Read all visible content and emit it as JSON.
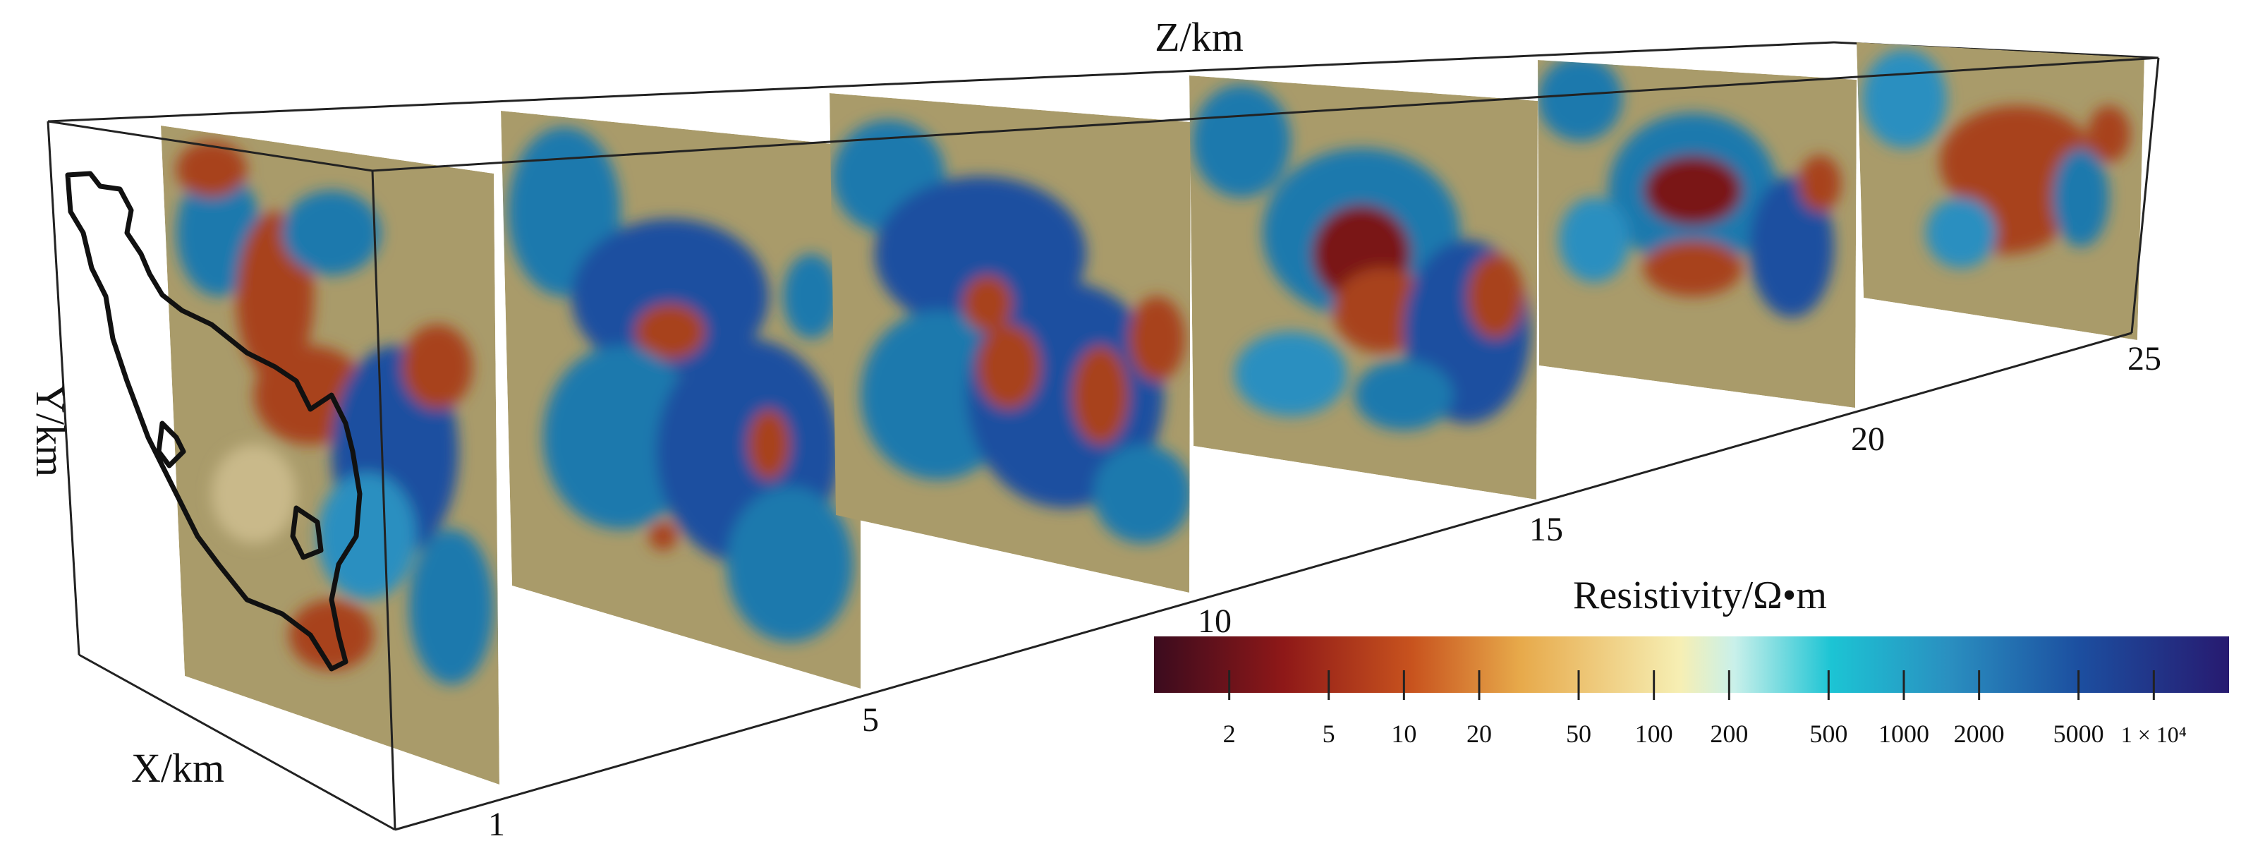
{
  "axes": {
    "z_label": "Z/km",
    "y_label": "Y/km",
    "x_label": "X/km",
    "z_ticks": [
      "1",
      "5",
      "10",
      "15",
      "20",
      "25"
    ]
  },
  "slices": [
    {
      "z": "1",
      "anomaly": "mixed"
    },
    {
      "z": "5",
      "anomaly": "conductive"
    },
    {
      "z": "10",
      "anomaly": "conductive"
    },
    {
      "z": "15",
      "anomaly": "resistive-core"
    },
    {
      "z": "20",
      "anomaly": "resistive-core"
    },
    {
      "z": "25",
      "anomaly": "resistive-core"
    }
  ],
  "colorbar": {
    "title": "Resistivity/Ω•m",
    "scale": "log",
    "range": [
      1,
      20000
    ],
    "tick_labels": [
      "2",
      "5",
      "10",
      "20",
      "50",
      "100",
      "200",
      "500",
      "1000",
      "2000",
      "5000",
      "1 × 10⁴"
    ],
    "tick_values": [
      2,
      5,
      10,
      20,
      50,
      100,
      200,
      500,
      1000,
      2000,
      5000,
      10000
    ],
    "colors": [
      "#3b0b1e",
      "#8e1818",
      "#c8531e",
      "#e7a94a",
      "#f6efb4",
      "#c9f0ea",
      "#1cc4d4",
      "#2a8fc0",
      "#1c4fa0",
      "#271a70"
    ]
  },
  "colors": {
    "neutral": "#a99b6a",
    "conductive": "#1f79ad",
    "resistive": "#a8431e",
    "outline": "#111111"
  }
}
